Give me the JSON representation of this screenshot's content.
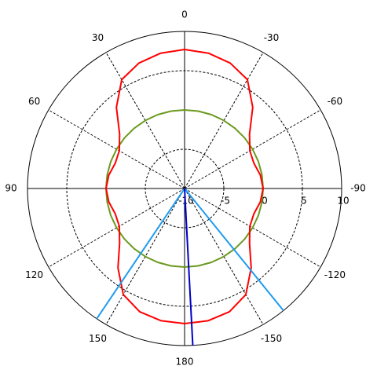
{
  "chart_data": {
    "type": "polar",
    "theta": [
      -180,
      -170,
      -160,
      -150,
      -140,
      -130,
      -120,
      -110,
      -100,
      -90,
      -80,
      -70,
      -60,
      -50,
      -40,
      -30,
      -20,
      -10,
      0,
      10,
      20,
      30,
      40,
      50,
      60,
      70,
      80,
      90,
      100,
      110,
      120,
      130,
      140,
      150,
      160,
      170,
      180
    ],
    "series": [
      {
        "color": "#ff0000",
        "values": [
          7.2,
          7.1,
          6.7,
          5.6,
          3.2,
          0.8,
          -0.4,
          -0.6,
          -0.2,
          0,
          -0.2,
          -0.6,
          -0.4,
          0.8,
          3.5,
          6.0,
          7.0,
          7.5,
          7.7,
          7.5,
          7.0,
          6.0,
          3.5,
          0.8,
          -0.4,
          -0.6,
          -0.2,
          0,
          -0.2,
          -0.6,
          -0.4,
          0.8,
          3.2,
          5.6,
          6.7,
          7.1,
          7.2
        ]
      },
      {
        "color": "#6b9a1f",
        "values": [
          0,
          0,
          0,
          0,
          0,
          0,
          0,
          0,
          0,
          0,
          0,
          0,
          0,
          0,
          0,
          0,
          0,
          0,
          0,
          0,
          0,
          0,
          0,
          0,
          0,
          0,
          0,
          0,
          0,
          0,
          0,
          0,
          0,
          0,
          0,
          0,
          0
        ]
      }
    ],
    "reference_lines": [
      {
        "theta": 146,
        "color": "#1e9bef"
      },
      {
        "theta": -141,
        "color": "#1e9bef"
      },
      {
        "theta": -177,
        "color": "#0000cc"
      }
    ],
    "rlim": [
      -10,
      10
    ],
    "rticks": [
      -10,
      -5,
      0,
      5,
      10
    ],
    "thetaticks": [
      0,
      30,
      60,
      90,
      120,
      150,
      180,
      -150,
      -120,
      -90,
      -60,
      -30
    ],
    "grid": true
  }
}
